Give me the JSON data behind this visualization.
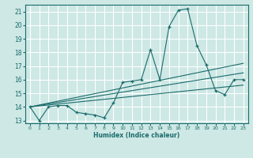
{
  "xlabel": "Humidex (Indice chaleur)",
  "ylabel": "",
  "bg_color": "#cde8e5",
  "grid_color": "#ffffff",
  "line_color": "#1a6b6b",
  "xlim": [
    -0.5,
    23.5
  ],
  "ylim": [
    12.8,
    21.5
  ],
  "xticks": [
    0,
    1,
    2,
    3,
    4,
    5,
    6,
    7,
    8,
    9,
    10,
    11,
    12,
    13,
    14,
    15,
    16,
    17,
    18,
    19,
    20,
    21,
    22,
    23
  ],
  "yticks": [
    13,
    14,
    15,
    16,
    17,
    18,
    19,
    20,
    21
  ],
  "line1_x": [
    0,
    1,
    2,
    3,
    4,
    5,
    6,
    7,
    8,
    9,
    10,
    11,
    12,
    13,
    14,
    15,
    16,
    17,
    18,
    19,
    20,
    21,
    22,
    23
  ],
  "line1_y": [
    14.0,
    13.0,
    14.0,
    14.1,
    14.1,
    13.6,
    13.5,
    13.4,
    13.2,
    14.3,
    15.8,
    15.9,
    16.0,
    18.2,
    16.0,
    19.9,
    21.1,
    21.2,
    18.5,
    17.1,
    15.2,
    14.9,
    16.0,
    16.0
  ],
  "line2_x": [
    0,
    23
  ],
  "line2_y": [
    14.0,
    17.2
  ],
  "line3_x": [
    0,
    23
  ],
  "line3_y": [
    14.0,
    15.6
  ],
  "line4_x": [
    0,
    23
  ],
  "line4_y": [
    14.0,
    16.5
  ]
}
